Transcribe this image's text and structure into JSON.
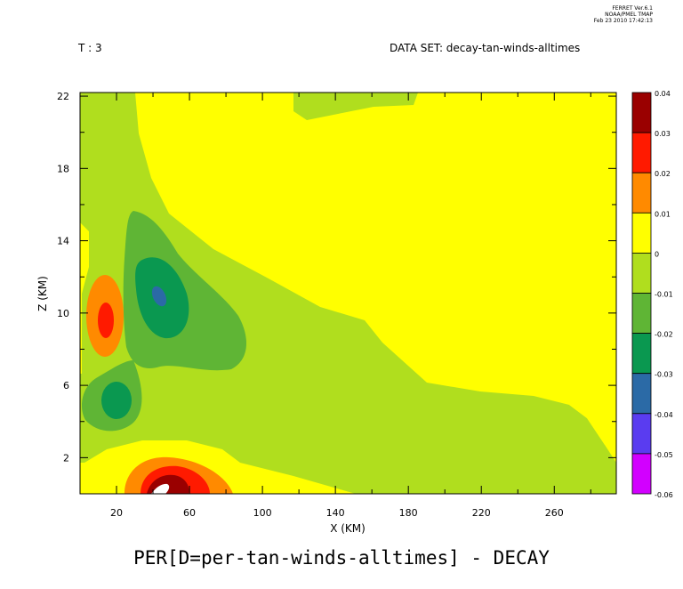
{
  "header": {
    "ferret_stamp": [
      "FERRET  Ver.6.1",
      "NOAA/PMEL TMAP",
      "Feb 23 2010 17:42:13"
    ],
    "time_label": "T : 3",
    "dataset_label": "DATA SET: decay-tan-winds-alltimes"
  },
  "footer": {
    "title": "PER[D=per-tan-winds-alltimes] - DECAY"
  },
  "colors": {
    "levels": [
      {
        "range": [
          -0.06,
          -0.05
        ],
        "color": "#d200ff"
      },
      {
        "range": [
          -0.05,
          -0.04
        ],
        "color": "#5a3cf0"
      },
      {
        "range": [
          -0.04,
          -0.03
        ],
        "color": "#2b6aa6"
      },
      {
        "range": [
          -0.03,
          -0.02
        ],
        "color": "#0a9850"
      },
      {
        "range": [
          -0.02,
          -0.01
        ],
        "color": "#5fb535"
      },
      {
        "range": [
          -0.01,
          0.0
        ],
        "color": "#b0de1e"
      },
      {
        "range": [
          0.0,
          0.01
        ],
        "color": "#ffff00"
      },
      {
        "range": [
          0.01,
          0.02
        ],
        "color": "#ff8a00"
      },
      {
        "range": [
          0.02,
          0.03
        ],
        "color": "#ff1a00"
      },
      {
        "range": [
          0.03,
          0.04
        ],
        "color": "#9a0000"
      }
    ],
    "above_max": "#ffffff"
  },
  "chart_data": {
    "type": "heatmap",
    "title": "PER[D=per-tan-winds-alltimes] - DECAY",
    "xlabel": "X (KM)",
    "ylabel": "Z (KM)",
    "xlim": [
      0,
      294
    ],
    "ylim": [
      0,
      22.2
    ],
    "x_ticks": [
      20,
      60,
      100,
      140,
      180,
      220,
      260
    ],
    "y_ticks": [
      2,
      6,
      10,
      14,
      18,
      22
    ],
    "colorbar": {
      "ticks": [
        "0.04",
        "0.03",
        "0.02",
        "0.01",
        "0",
        "-0.01",
        "-0.02",
        "-0.03",
        "-0.04",
        "-0.05",
        "-0.06"
      ],
      "min": -0.06,
      "max": 0.04
    },
    "features": [
      {
        "kind": "negative",
        "x": 47,
        "z": 11.1,
        "level": "-0.04 to -0.03",
        "note": "min near center of upper-left low"
      },
      {
        "kind": "negative",
        "x": 40,
        "z": 11.5,
        "level": "-0.03 to -0.02"
      },
      {
        "kind": "negative",
        "x": 20,
        "z": 5.2,
        "level": "-0.03 to -0.02"
      },
      {
        "kind": "positive",
        "x": 16,
        "z": 9.6,
        "level": "0.02 to 0.03"
      },
      {
        "kind": "positive",
        "x": 49,
        "z": 0.4,
        "level": "> 0.04"
      }
    ]
  }
}
